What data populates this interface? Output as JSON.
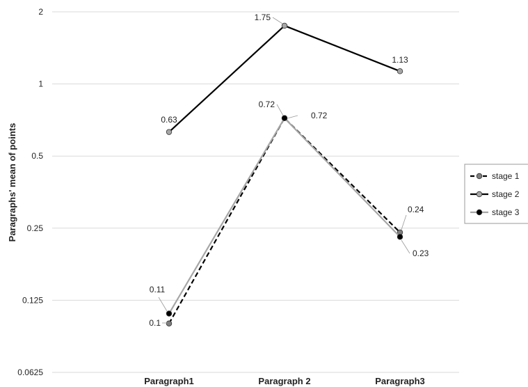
{
  "chart_data": {
    "type": "line",
    "title": "",
    "xlabel": "",
    "ylabel": "Paragraphs' mean of points",
    "y_scale": "log2",
    "ylim": [
      0.0625,
      2
    ],
    "y_ticks": [
      "2",
      "1",
      "0.5",
      "0.25",
      "0.125",
      "0.0625"
    ],
    "categories": [
      "Paragraph1",
      "Paragraph 2",
      "Paragraph3"
    ],
    "grid": true,
    "legend_position": "right",
    "series": [
      {
        "name": "stage 1",
        "values": [
          0.1,
          0.72,
          0.24
        ],
        "labels": [
          "0.1",
          "",
          "0.24"
        ],
        "color": "#000000",
        "marker_color": "#7f7f7f",
        "dash": true
      },
      {
        "name": "stage 2",
        "values": [
          0.63,
          1.75,
          1.13
        ],
        "labels": [
          "0.63",
          "1.75",
          "1.13"
        ],
        "color": "#000000",
        "marker_color": "#a6a6a6",
        "dash": false
      },
      {
        "name": "stage 3",
        "values": [
          0.11,
          0.72,
          0.23
        ],
        "labels": [
          "0.11",
          "0.72",
          "0.23"
        ],
        "color": "#a6a6a6",
        "marker_color": "#000000",
        "dash": false
      }
    ],
    "extra_labels": [
      "0.72"
    ]
  }
}
